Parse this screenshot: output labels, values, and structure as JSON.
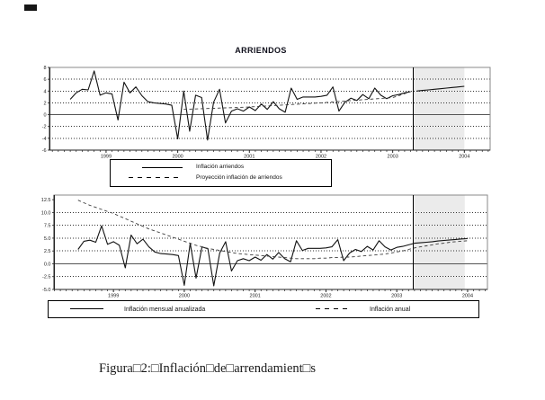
{
  "figure": {
    "title": "ARRIENDOS",
    "caption": "Figura□2:□Inflación□de□arrendamient□s"
  },
  "chart_data": [
    {
      "type": "line",
      "title": "ARRIENDOS",
      "xlabel": "",
      "ylabel": "",
      "ylim": [
        -6,
        8
      ],
      "ytick_values": [
        8,
        6,
        4,
        2,
        0,
        -2,
        -4,
        -6
      ],
      "ytick_labels": [
        "8",
        "6",
        "4",
        "2",
        "0",
        "-2",
        "-4",
        "-6"
      ],
      "grid_ticks": [
        6,
        4,
        2,
        -2,
        -4
      ],
      "zero_line": true,
      "grid": "dotted-horizontal",
      "legend_position": "box-below",
      "xlim": [
        1998.21,
        2004.36
      ],
      "xticks": [
        1999,
        2000,
        2001,
        2002,
        2003,
        2004
      ],
      "projection_start": 2003.29,
      "shade": [
        2003.29,
        2004.0
      ],
      "series": [
        {
          "name": "Inflación arriendos",
          "style": "solid",
          "x_start": 1998.5,
          "values": [
            2.6,
            3.7,
            4.3,
            4.2,
            7.4,
            3.3,
            3.7,
            3.5,
            -0.9,
            5.5,
            3.7,
            4.7,
            3.2,
            2.2,
            2.0,
            1.9,
            1.8,
            1.6,
            -4.1,
            4.0,
            -2.8,
            3.3,
            2.9,
            -4.3,
            2.1,
            4.3,
            -1.4,
            0.6,
            1.0,
            0.6,
            1.3,
            0.7,
            1.8,
            0.9,
            2.2,
            1.0,
            0.4,
            4.5,
            2.6,
            3.0,
            3.0,
            3.0,
            3.1,
            3.3,
            4.7,
            0.6,
            2.1,
            2.8,
            2.4,
            3.4,
            2.7,
            4.5,
            3.3,
            2.7,
            3.2,
            3.4,
            3.7,
            3.9
          ]
        },
        {
          "name": "Proyección inflación de arriendos",
          "style": "dashed",
          "solid_after_projection": true,
          "x_start": 2000.083,
          "values": [
            0.9,
            0.94,
            0.97,
            1.01,
            1.04,
            1.08,
            1.12,
            1.15,
            1.19,
            1.22,
            1.26,
            1.3,
            1.36,
            1.42,
            1.47,
            1.53,
            1.59,
            1.65,
            1.71,
            1.77,
            1.82,
            1.88,
            1.94,
            2.0,
            2.08,
            2.15,
            2.23,
            2.3,
            2.38,
            2.45,
            2.53,
            2.6,
            2.68,
            2.75,
            2.83,
            2.9,
            3.2,
            3.55,
            3.9,
            4.0,
            4.1,
            4.2,
            4.3,
            4.4,
            4.5,
            4.6,
            4.7,
            4.8
          ]
        }
      ]
    },
    {
      "type": "line",
      "title": "",
      "xlabel": "",
      "ylabel": "",
      "ylim": [
        -5,
        13.4
      ],
      "ytick_values": [
        12.5,
        10,
        7.5,
        5,
        2.5,
        0,
        -2.5,
        -5
      ],
      "ytick_labels": [
        "12.5",
        "10.0",
        "7.5",
        "5.0",
        "2.5",
        "0.0",
        "-2.5",
        "-5.0"
      ],
      "grid_ticks": [
        10,
        7.5,
        5,
        2.5,
        -2.5
      ],
      "zero_line": true,
      "grid": "dotted-horizontal",
      "legend_position": "box-below",
      "xlim": [
        1998.16,
        2004.28
      ],
      "xticks": [
        1999,
        2000,
        2001,
        2002,
        2003,
        2004
      ],
      "projection_start": 2003.23,
      "shade": [
        2003.23,
        2003.96
      ],
      "series": [
        {
          "name": "Inflación mensual anualizada",
          "style": "solid",
          "x_start": 1998.5,
          "values": [
            2.8,
            4.4,
            4.6,
            4.2,
            7.4,
            3.8,
            4.3,
            3.6,
            -0.8,
            5.6,
            3.9,
            4.8,
            3.3,
            2.3,
            2.0,
            1.9,
            1.8,
            1.6,
            -4.2,
            4.0,
            -2.8,
            3.3,
            2.9,
            -4.3,
            2.1,
            4.3,
            -1.4,
            0.6,
            1.0,
            0.6,
            1.3,
            0.7,
            1.8,
            0.9,
            2.2,
            1.0,
            0.4,
            4.5,
            2.6,
            3.0,
            3.0,
            3.0,
            3.1,
            3.3,
            4.7,
            0.6,
            2.1,
            2.8,
            2.4,
            3.4,
            2.7,
            4.5,
            3.3,
            2.7,
            3.2,
            3.4,
            3.7,
            4.0,
            4.1,
            4.2,
            4.3,
            4.45,
            4.55,
            4.65,
            4.75,
            4.85,
            4.9
          ]
        },
        {
          "name": "Inflación anual",
          "style": "dashed",
          "x_start": 1998.5,
          "values": [
            12.4,
            11.9,
            11.4,
            11.0,
            10.6,
            10.2,
            9.8,
            9.3,
            8.8,
            8.3,
            7.8,
            7.3,
            6.8,
            6.4,
            6.0,
            5.6,
            5.2,
            4.8,
            4.4,
            4.0,
            3.6,
            3.3,
            3.0,
            2.8,
            2.6,
            2.4,
            2.2,
            2.0,
            1.9,
            1.8,
            1.7,
            1.6,
            1.5,
            1.4,
            1.3,
            1.2,
            1.1,
            1.0,
            1.0,
            1.0,
            1.0,
            1.1,
            1.1,
            1.2,
            1.2,
            1.3,
            1.3,
            1.4,
            1.5,
            1.6,
            1.7,
            1.8,
            1.9,
            2.1,
            2.3,
            2.5,
            2.8,
            3.1,
            3.3,
            3.5,
            3.7,
            3.9,
            4.0,
            4.2,
            4.3,
            4.4,
            4.5
          ]
        }
      ]
    }
  ]
}
